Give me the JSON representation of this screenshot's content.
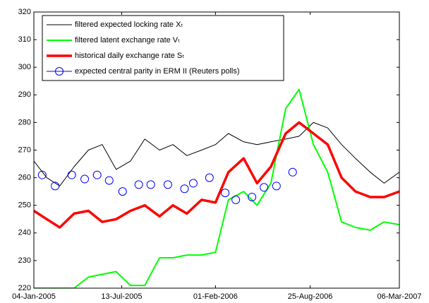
{
  "chart_data": {
    "type": "line",
    "x": [
      "2005-01-04",
      "2005-02-01",
      "2005-03-01",
      "2005-04-01",
      "2005-05-02",
      "2005-06-01",
      "2005-07-01",
      "2005-08-01",
      "2005-09-01",
      "2005-10-03",
      "2005-11-01",
      "2005-12-01",
      "2006-01-02",
      "2006-02-01",
      "2006-03-01",
      "2006-04-03",
      "2006-05-02",
      "2006-06-01",
      "2006-07-03",
      "2006-08-01",
      "2006-09-01",
      "2006-10-02",
      "2006-11-01",
      "2006-12-01",
      "2007-01-02",
      "2007-02-01",
      "2007-03-06"
    ],
    "series": [
      {
        "name": "filtered expected locking rate Xₜ",
        "color": "#000000",
        "width": 1,
        "values": [
          266,
          260,
          257,
          264,
          270,
          272,
          263,
          266,
          274,
          270,
          272,
          268,
          270,
          272,
          276,
          273,
          272,
          273,
          274,
          275,
          280,
          278,
          272,
          267,
          262,
          258,
          262
        ]
      },
      {
        "name": "filtered latent exchange rate Vₜ",
        "color": "#00ff00",
        "width": 2,
        "values": [
          220,
          220,
          220,
          220,
          224,
          225,
          226,
          221,
          221,
          231,
          231,
          232,
          232,
          233,
          252,
          255,
          250,
          258,
          285,
          292,
          272,
          262,
          244,
          242,
          241,
          244,
          243
        ]
      },
      {
        "name": "historical daily exchange rate Sₜ",
        "color": "#ff0000",
        "width": 3.5,
        "values": [
          248,
          245,
          242,
          247,
          248,
          244,
          245,
          248,
          250,
          246,
          250,
          247,
          252,
          251,
          262,
          267,
          258,
          264,
          276,
          280,
          276,
          272,
          260,
          255,
          253,
          253,
          255
        ]
      },
      {
        "name": "expected central parity in ERM II (Reuters polls)",
        "color": "#0000ff",
        "marker": "circle",
        "x": [
          "2005-01-22",
          "2005-02-19",
          "2005-03-27",
          "2005-04-24",
          "2005-05-21",
          "2005-06-16",
          "2005-07-15",
          "2005-08-19",
          "2005-09-14",
          "2005-10-21",
          "2005-11-26",
          "2005-12-15",
          "2006-01-19",
          "2006-02-22",
          "2006-03-17",
          "2006-04-21",
          "2006-05-17",
          "2006-06-13",
          "2006-07-18"
        ],
        "values": [
          261,
          257,
          261,
          259.5,
          261,
          259,
          255,
          257.5,
          257.5,
          257.5,
          256,
          258,
          260,
          254.5,
          252,
          253,
          256.5,
          257,
          262
        ]
      }
    ],
    "xlim": [
      "2005-01-04",
      "2007-03-06"
    ],
    "xticks": [
      {
        "value": "2005-01-04",
        "label": "04-Jan-2005"
      },
      {
        "value": "2005-07-13",
        "label": "13-Jul-2005"
      },
      {
        "value": "2006-02-01",
        "label": "01-Feb-2006"
      },
      {
        "value": "2006-08-25",
        "label": "25-Aug-2006"
      },
      {
        "value": "2007-03-06",
        "label": "06-Mar-2007"
      }
    ],
    "ylim": [
      220,
      320
    ],
    "yticks": [
      220,
      230,
      240,
      250,
      260,
      270,
      280,
      290,
      300,
      310,
      320
    ],
    "legend": "upper left"
  }
}
